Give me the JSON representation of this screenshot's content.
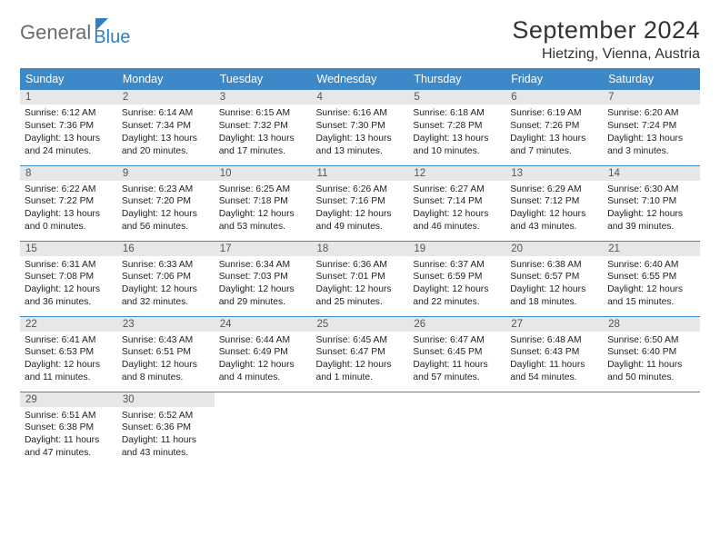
{
  "logo": {
    "part1": "General",
    "part2": "Blue"
  },
  "title": "September 2024",
  "location": "Hietzing, Vienna, Austria",
  "colors": {
    "header_bg": "#3d88c7",
    "header_text": "#ffffff",
    "daynum_bg": "#e7e7e7",
    "border": "#3d88c7",
    "title_color": "#333333",
    "logo_gray": "#6b6b6b",
    "logo_blue": "#2f7fc1"
  },
  "fonts": {
    "title_pt": 27,
    "location_pt": 16,
    "header_pt": 12.5,
    "daynum_pt": 11.5,
    "body_pt": 10.3
  },
  "weekdays": [
    "Sunday",
    "Monday",
    "Tuesday",
    "Wednesday",
    "Thursday",
    "Friday",
    "Saturday"
  ],
  "weeks": [
    [
      {
        "n": "1",
        "sr": "Sunrise: 6:12 AM",
        "ss": "Sunset: 7:36 PM",
        "dl1": "Daylight: 13 hours",
        "dl2": "and 24 minutes."
      },
      {
        "n": "2",
        "sr": "Sunrise: 6:14 AM",
        "ss": "Sunset: 7:34 PM",
        "dl1": "Daylight: 13 hours",
        "dl2": "and 20 minutes."
      },
      {
        "n": "3",
        "sr": "Sunrise: 6:15 AM",
        "ss": "Sunset: 7:32 PM",
        "dl1": "Daylight: 13 hours",
        "dl2": "and 17 minutes."
      },
      {
        "n": "4",
        "sr": "Sunrise: 6:16 AM",
        "ss": "Sunset: 7:30 PM",
        "dl1": "Daylight: 13 hours",
        "dl2": "and 13 minutes."
      },
      {
        "n": "5",
        "sr": "Sunrise: 6:18 AM",
        "ss": "Sunset: 7:28 PM",
        "dl1": "Daylight: 13 hours",
        "dl2": "and 10 minutes."
      },
      {
        "n": "6",
        "sr": "Sunrise: 6:19 AM",
        "ss": "Sunset: 7:26 PM",
        "dl1": "Daylight: 13 hours",
        "dl2": "and 7 minutes."
      },
      {
        "n": "7",
        "sr": "Sunrise: 6:20 AM",
        "ss": "Sunset: 7:24 PM",
        "dl1": "Daylight: 13 hours",
        "dl2": "and 3 minutes."
      }
    ],
    [
      {
        "n": "8",
        "sr": "Sunrise: 6:22 AM",
        "ss": "Sunset: 7:22 PM",
        "dl1": "Daylight: 13 hours",
        "dl2": "and 0 minutes."
      },
      {
        "n": "9",
        "sr": "Sunrise: 6:23 AM",
        "ss": "Sunset: 7:20 PM",
        "dl1": "Daylight: 12 hours",
        "dl2": "and 56 minutes."
      },
      {
        "n": "10",
        "sr": "Sunrise: 6:25 AM",
        "ss": "Sunset: 7:18 PM",
        "dl1": "Daylight: 12 hours",
        "dl2": "and 53 minutes."
      },
      {
        "n": "11",
        "sr": "Sunrise: 6:26 AM",
        "ss": "Sunset: 7:16 PM",
        "dl1": "Daylight: 12 hours",
        "dl2": "and 49 minutes."
      },
      {
        "n": "12",
        "sr": "Sunrise: 6:27 AM",
        "ss": "Sunset: 7:14 PM",
        "dl1": "Daylight: 12 hours",
        "dl2": "and 46 minutes."
      },
      {
        "n": "13",
        "sr": "Sunrise: 6:29 AM",
        "ss": "Sunset: 7:12 PM",
        "dl1": "Daylight: 12 hours",
        "dl2": "and 43 minutes."
      },
      {
        "n": "14",
        "sr": "Sunrise: 6:30 AM",
        "ss": "Sunset: 7:10 PM",
        "dl1": "Daylight: 12 hours",
        "dl2": "and 39 minutes."
      }
    ],
    [
      {
        "n": "15",
        "sr": "Sunrise: 6:31 AM",
        "ss": "Sunset: 7:08 PM",
        "dl1": "Daylight: 12 hours",
        "dl2": "and 36 minutes."
      },
      {
        "n": "16",
        "sr": "Sunrise: 6:33 AM",
        "ss": "Sunset: 7:06 PM",
        "dl1": "Daylight: 12 hours",
        "dl2": "and 32 minutes."
      },
      {
        "n": "17",
        "sr": "Sunrise: 6:34 AM",
        "ss": "Sunset: 7:03 PM",
        "dl1": "Daylight: 12 hours",
        "dl2": "and 29 minutes."
      },
      {
        "n": "18",
        "sr": "Sunrise: 6:36 AM",
        "ss": "Sunset: 7:01 PM",
        "dl1": "Daylight: 12 hours",
        "dl2": "and 25 minutes."
      },
      {
        "n": "19",
        "sr": "Sunrise: 6:37 AM",
        "ss": "Sunset: 6:59 PM",
        "dl1": "Daylight: 12 hours",
        "dl2": "and 22 minutes."
      },
      {
        "n": "20",
        "sr": "Sunrise: 6:38 AM",
        "ss": "Sunset: 6:57 PM",
        "dl1": "Daylight: 12 hours",
        "dl2": "and 18 minutes."
      },
      {
        "n": "21",
        "sr": "Sunrise: 6:40 AM",
        "ss": "Sunset: 6:55 PM",
        "dl1": "Daylight: 12 hours",
        "dl2": "and 15 minutes."
      }
    ],
    [
      {
        "n": "22",
        "sr": "Sunrise: 6:41 AM",
        "ss": "Sunset: 6:53 PM",
        "dl1": "Daylight: 12 hours",
        "dl2": "and 11 minutes."
      },
      {
        "n": "23",
        "sr": "Sunrise: 6:43 AM",
        "ss": "Sunset: 6:51 PM",
        "dl1": "Daylight: 12 hours",
        "dl2": "and 8 minutes."
      },
      {
        "n": "24",
        "sr": "Sunrise: 6:44 AM",
        "ss": "Sunset: 6:49 PM",
        "dl1": "Daylight: 12 hours",
        "dl2": "and 4 minutes."
      },
      {
        "n": "25",
        "sr": "Sunrise: 6:45 AM",
        "ss": "Sunset: 6:47 PM",
        "dl1": "Daylight: 12 hours",
        "dl2": "and 1 minute."
      },
      {
        "n": "26",
        "sr": "Sunrise: 6:47 AM",
        "ss": "Sunset: 6:45 PM",
        "dl1": "Daylight: 11 hours",
        "dl2": "and 57 minutes."
      },
      {
        "n": "27",
        "sr": "Sunrise: 6:48 AM",
        "ss": "Sunset: 6:43 PM",
        "dl1": "Daylight: 11 hours",
        "dl2": "and 54 minutes."
      },
      {
        "n": "28",
        "sr": "Sunrise: 6:50 AM",
        "ss": "Sunset: 6:40 PM",
        "dl1": "Daylight: 11 hours",
        "dl2": "and 50 minutes."
      }
    ],
    [
      {
        "n": "29",
        "sr": "Sunrise: 6:51 AM",
        "ss": "Sunset: 6:38 PM",
        "dl1": "Daylight: 11 hours",
        "dl2": "and 47 minutes."
      },
      {
        "n": "30",
        "sr": "Sunrise: 6:52 AM",
        "ss": "Sunset: 6:36 PM",
        "dl1": "Daylight: 11 hours",
        "dl2": "and 43 minutes."
      },
      {
        "empty": true
      },
      {
        "empty": true
      },
      {
        "empty": true
      },
      {
        "empty": true
      },
      {
        "empty": true
      }
    ]
  ]
}
